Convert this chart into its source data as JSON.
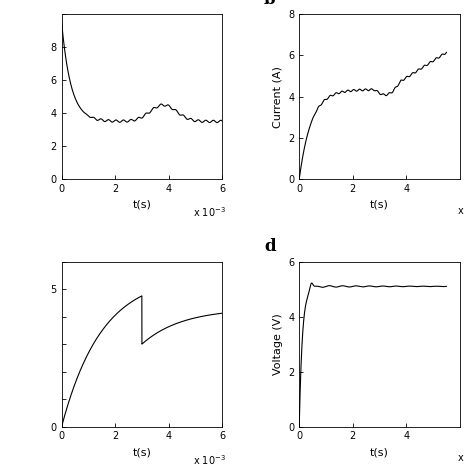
{
  "fig_width": 4.74,
  "fig_height": 4.74,
  "dpi": 100,
  "background_color": "#ffffff",
  "line_color": "#000000",
  "line_width": 0.8,
  "panel_a": {
    "xlabel": "t(s)",
    "xlim": [
      0,
      6
    ],
    "ylim": [
      0,
      10
    ],
    "yticks": [
      0,
      2,
      4,
      6,
      8,
      10
    ],
    "ytick_labels": [
      "0",
      "2",
      "4",
      "6",
      "8",
      ""
    ],
    "xticks": [
      0,
      2,
      4,
      6
    ],
    "scale_text": "x 10³"
  },
  "panel_b": {
    "xlabel": "t(s)",
    "ylabel": "Current (A)",
    "xlim": [
      0,
      6
    ],
    "ylim": [
      0,
      8
    ],
    "yticks": [
      0,
      2,
      4,
      6,
      8
    ],
    "ytick_labels": [
      "0",
      "2",
      "4",
      "6",
      "8"
    ],
    "xticks": [
      0,
      2,
      4
    ],
    "scale_text": "x"
  },
  "panel_c": {
    "xlabel": "t(s)",
    "xlim": [
      0,
      6
    ],
    "ylim": [
      0,
      6
    ],
    "yticks": [
      0,
      1,
      2,
      3,
      4,
      5,
      6
    ],
    "ytick_labels": [
      "0",
      "",
      "",
      "",
      "",
      "5",
      ""
    ],
    "xticks": [
      0,
      2,
      4,
      6
    ],
    "scale_text": "x 10³"
  },
  "panel_d": {
    "xlabel": "t(s)",
    "ylabel": "Voltage (V)",
    "xlim": [
      0,
      6
    ],
    "ylim": [
      0,
      6
    ],
    "yticks": [
      0,
      2,
      4,
      6
    ],
    "ytick_labels": [
      "0",
      "2",
      "4",
      "6"
    ],
    "xticks": [
      0,
      2,
      4
    ],
    "scale_text": "x"
  }
}
